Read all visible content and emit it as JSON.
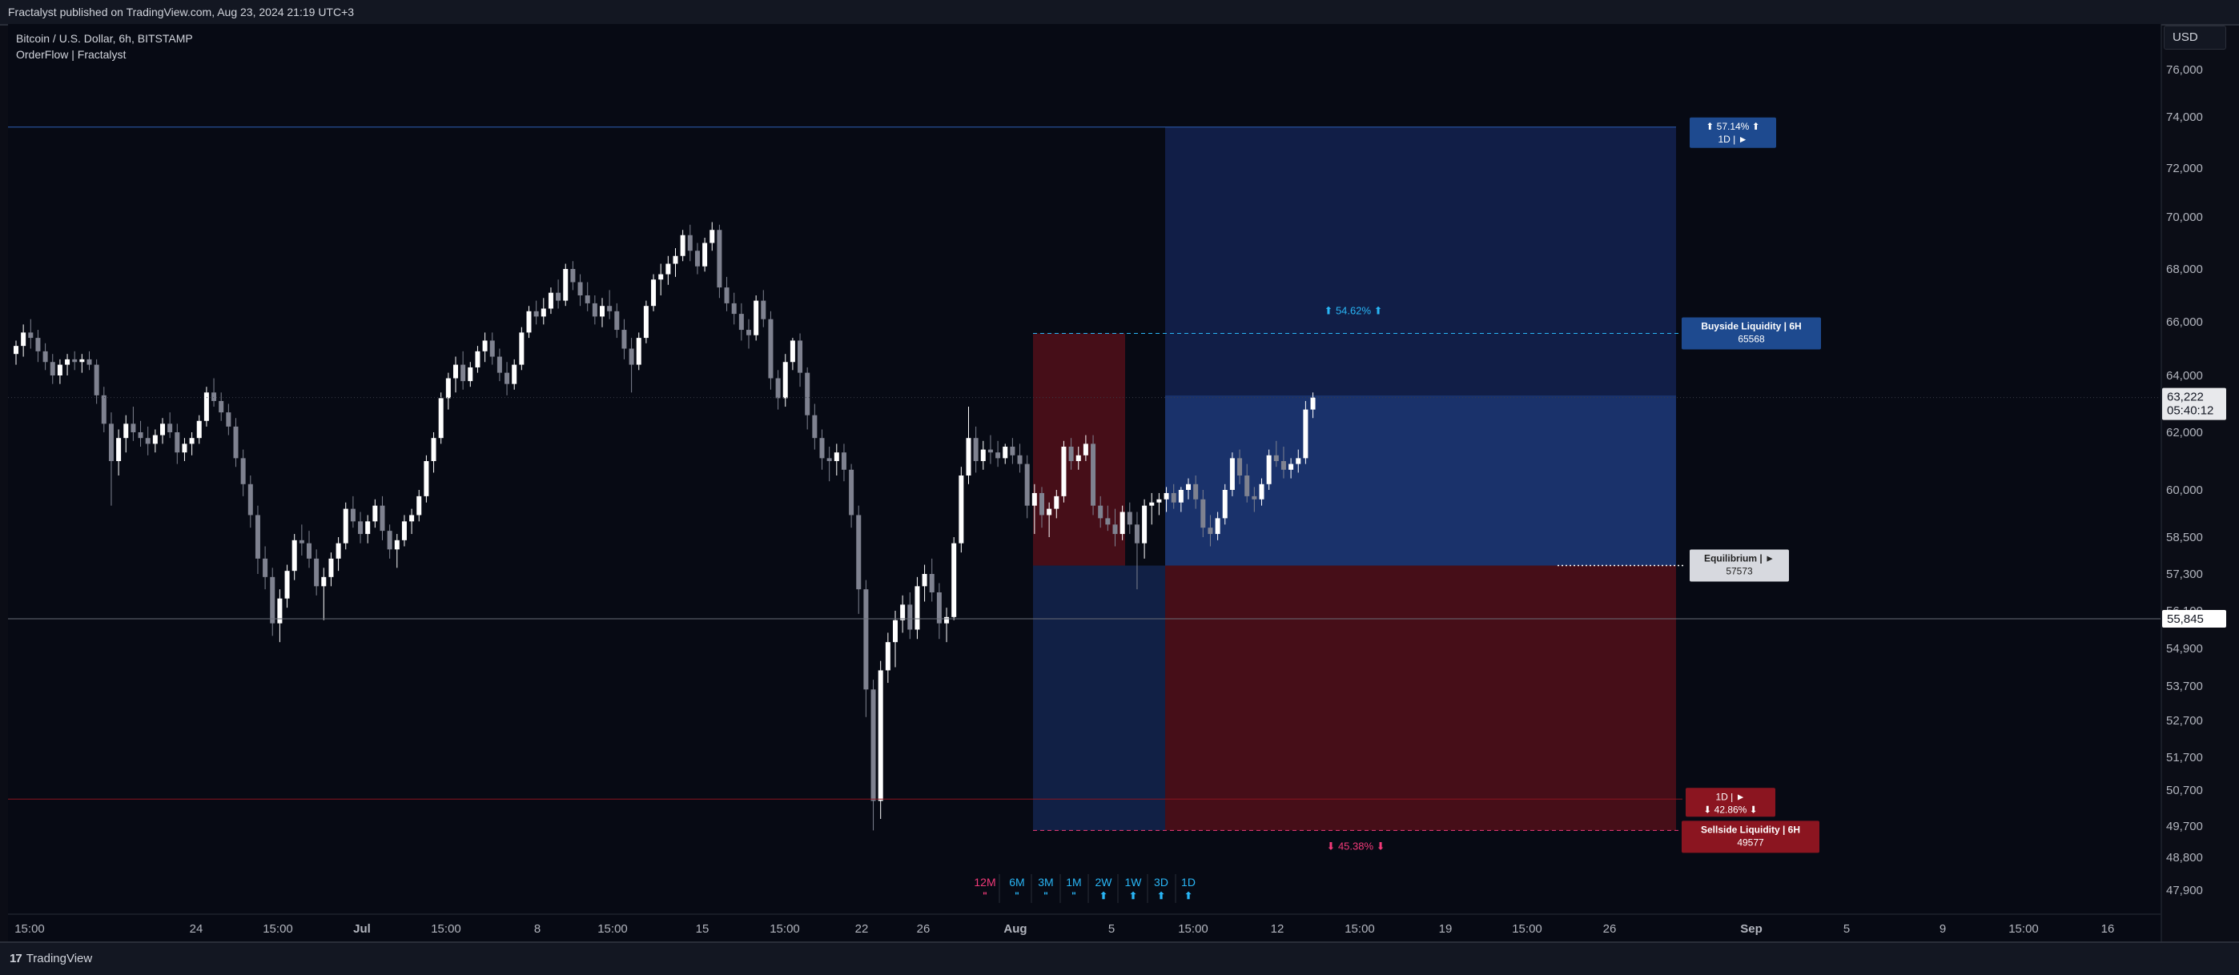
{
  "publish_bar": {
    "text": "Fractalyst published on TradingView.com, Aug 23, 2024 21:19 UTC+3"
  },
  "header": {
    "symbol": "Bitcoin / U.S. Dollar, 6h, BITSTAMP",
    "indicator": "OrderFlow | Fractalyst"
  },
  "currency_button": {
    "label": "USD"
  },
  "footer": {
    "brand": "TradingView",
    "logo_text": "17"
  },
  "colors": {
    "background": "#070a14",
    "up_candle": "#ffffff",
    "down_candle": "#7f8290",
    "premium_zone": "#1d3a7a",
    "discount_zone": "#4a0f18",
    "buyside": "#1e4a8f",
    "sellside": "#8b1520",
    "equilibrium": "#d1d4dc",
    "accent_cyan": "#29b6f6",
    "accent_pink": "#f23a79"
  },
  "chart_data": {
    "type": "candlestick",
    "symbol": "BTCUSD",
    "timeframe": "6h",
    "y_axis": {
      "ticks": [
        76000,
        74000,
        72000,
        70000,
        68000,
        66000,
        64000,
        62000,
        60000,
        58500,
        57300,
        56100,
        54900,
        53700,
        52700,
        51700,
        50700,
        49700,
        48800,
        47900
      ],
      "tick_labels": [
        "76,000",
        "74,000",
        "72,000",
        "70,000",
        "68,000",
        "66,000",
        "64,000",
        "62,000",
        "60,000",
        "58,500",
        "57,300",
        "56,100",
        "54,900",
        "53,700",
        "52,700",
        "51,700",
        "50,700",
        "49,700",
        "48,800",
        "47,900"
      ]
    },
    "x_axis": {
      "tick_labels": [
        "15:00",
        "24",
        "15:00",
        "Jul",
        "15:00",
        "8",
        "15:00",
        "15",
        "15:00",
        "22",
        "26",
        "Aug",
        "5",
        "15:00",
        "12",
        "15:00",
        "19",
        "15:00",
        "26",
        "Sep",
        "5",
        "9",
        "15:00",
        "16"
      ],
      "start": "2024-06-20",
      "end": "2024-09-18"
    },
    "price_labels": {
      "last": "63,222",
      "countdown": "05:40:12",
      "crosshair": "55,845"
    },
    "levels": {
      "buyside": {
        "label": "Buyside Liquidity | 6H",
        "value": 65568
      },
      "equilibrium": {
        "label": "Equilibrium | ►",
        "value": 57573
      },
      "sellside": {
        "label": "Sellside Liquidity | 6H",
        "value": 49577
      },
      "top_target": {
        "label": "⬆ 57.14% ⬆",
        "sub": "1D | ►",
        "value": 73600
      },
      "bottom_target": {
        "label": "⬇ 42.86% ⬇",
        "sub": "1D | ►",
        "value": 50450
      },
      "crosshair_value": 55845
    },
    "annotations": {
      "up_percent": "⬆ 54.62% ⬆",
      "down_percent": "⬇ 45.38% ⬇"
    },
    "timeframe_bias": [
      {
        "tf": "12M",
        "sign": "\"",
        "color": "#f23a79"
      },
      {
        "tf": "6M",
        "sign": "\"",
        "color": "#29b6f6"
      },
      {
        "tf": "3M",
        "sign": "\"",
        "color": "#29b6f6"
      },
      {
        "tf": "1M",
        "sign": "\"",
        "color": "#29b6f6"
      },
      {
        "tf": "2W",
        "sign": "⬆",
        "color": "#29b6f6"
      },
      {
        "tf": "1W",
        "sign": "⬆",
        "color": "#29b6f6"
      },
      {
        "tf": "3D",
        "sign": "⬆",
        "color": "#29b6f6"
      },
      {
        "tf": "1D",
        "sign": "⬆",
        "color": "#29b6f6"
      }
    ],
    "candles": [
      [
        64800,
        65300,
        64400,
        65100
      ],
      [
        65100,
        65900,
        64700,
        65600
      ],
      [
        65600,
        66100,
        65000,
        65400
      ],
      [
        65400,
        65700,
        64500,
        64900
      ],
      [
        64900,
        65200,
        64200,
        64500
      ],
      [
        64500,
        64800,
        63700,
        64000
      ],
      [
        64000,
        64600,
        63700,
        64400
      ],
      [
        64400,
        64800,
        64000,
        64600
      ],
      [
        64600,
        64900,
        64200,
        64500
      ],
      [
        64500,
        64800,
        64100,
        64600
      ],
      [
        64600,
        64900,
        64200,
        64400
      ],
      [
        64400,
        64600,
        63000,
        63300
      ],
      [
        63300,
        63600,
        62000,
        62300
      ],
      [
        62300,
        62700,
        59500,
        61000
      ],
      [
        61000,
        62100,
        60500,
        61800
      ],
      [
        61800,
        62600,
        61300,
        62300
      ],
      [
        62300,
        62900,
        61700,
        62000
      ],
      [
        62000,
        62400,
        61500,
        61800
      ],
      [
        61800,
        62200,
        61200,
        61600
      ],
      [
        61600,
        62100,
        61300,
        61900
      ],
      [
        61900,
        62500,
        61600,
        62300
      ],
      [
        62300,
        62700,
        61800,
        62000
      ],
      [
        62000,
        62300,
        60900,
        61300
      ],
      [
        61300,
        61800,
        61000,
        61600
      ],
      [
        61600,
        62000,
        61200,
        61800
      ],
      [
        61800,
        62600,
        61600,
        62400
      ],
      [
        62400,
        63600,
        62200,
        63400
      ],
      [
        63400,
        63900,
        62900,
        63100
      ],
      [
        63100,
        63400,
        62400,
        62700
      ],
      [
        62700,
        63000,
        61900,
        62200
      ],
      [
        62200,
        62500,
        60800,
        61100
      ],
      [
        61100,
        61400,
        59800,
        60200
      ],
      [
        60200,
        60500,
        58800,
        59200
      ],
      [
        59200,
        59500,
        57300,
        57800
      ],
      [
        57800,
        58200,
        56800,
        57200
      ],
      [
        57200,
        57500,
        55300,
        55700
      ],
      [
        55700,
        56800,
        55100,
        56500
      ],
      [
        56500,
        57600,
        56200,
        57400
      ],
      [
        57400,
        58600,
        57100,
        58400
      ],
      [
        58400,
        58900,
        57900,
        58300
      ],
      [
        58300,
        58700,
        57500,
        57800
      ],
      [
        57800,
        58100,
        56600,
        56900
      ],
      [
        56900,
        57500,
        55800,
        57200
      ],
      [
        57200,
        58000,
        56900,
        57800
      ],
      [
        57800,
        58500,
        57400,
        58300
      ],
      [
        58300,
        59600,
        58100,
        59400
      ],
      [
        59400,
        59800,
        58800,
        59000
      ],
      [
        59000,
        59300,
        58300,
        58600
      ],
      [
        58600,
        59200,
        58300,
        59000
      ],
      [
        59000,
        59700,
        58800,
        59500
      ],
      [
        59500,
        59800,
        58400,
        58700
      ],
      [
        58700,
        58900,
        57800,
        58100
      ],
      [
        58100,
        58600,
        57500,
        58400
      ],
      [
        58400,
        59200,
        58200,
        59000
      ],
      [
        59000,
        59400,
        58600,
        59200
      ],
      [
        59200,
        60000,
        59000,
        59800
      ],
      [
        59800,
        61200,
        59600,
        61000
      ],
      [
        61000,
        62000,
        60600,
        61800
      ],
      [
        61800,
        63400,
        61600,
        63200
      ],
      [
        63200,
        64100,
        62800,
        63900
      ],
      [
        63900,
        64700,
        63400,
        64400
      ],
      [
        64400,
        64900,
        63500,
        63800
      ],
      [
        63800,
        64500,
        63600,
        64300
      ],
      [
        64300,
        65100,
        64100,
        64900
      ],
      [
        64900,
        65600,
        64500,
        65300
      ],
      [
        65300,
        65600,
        64400,
        64700
      ],
      [
        64700,
        65000,
        63800,
        64100
      ],
      [
        64100,
        64500,
        63300,
        63700
      ],
      [
        63700,
        64600,
        63500,
        64400
      ],
      [
        64400,
        65800,
        64200,
        65600
      ],
      [
        65600,
        66600,
        65400,
        66400
      ],
      [
        66400,
        66800,
        65900,
        66200
      ],
      [
        66200,
        66900,
        65900,
        66500
      ],
      [
        66500,
        67300,
        66300,
        67100
      ],
      [
        67100,
        67600,
        66500,
        66800
      ],
      [
        66800,
        68200,
        66600,
        68000
      ],
      [
        68000,
        68300,
        67200,
        67500
      ],
      [
        67500,
        67800,
        66600,
        67000
      ],
      [
        67000,
        67500,
        66400,
        66700
      ],
      [
        66700,
        67000,
        65900,
        66200
      ],
      [
        66200,
        66900,
        65800,
        66600
      ],
      [
        66600,
        67200,
        66100,
        66400
      ],
      [
        66400,
        66700,
        65400,
        65700
      ],
      [
        65700,
        66100,
        64600,
        65000
      ],
      [
        65000,
        65400,
        63400,
        64400
      ],
      [
        64400,
        65600,
        64200,
        65400
      ],
      [
        65400,
        66800,
        65200,
        66600
      ],
      [
        66600,
        67800,
        66400,
        67600
      ],
      [
        67600,
        68200,
        67000,
        67800
      ],
      [
        67800,
        68500,
        67400,
        68200
      ],
      [
        68200,
        68800,
        67700,
        68500
      ],
      [
        68500,
        69500,
        68300,
        69300
      ],
      [
        69300,
        69700,
        68300,
        68700
      ],
      [
        68700,
        69000,
        67800,
        68100
      ],
      [
        68100,
        69200,
        67900,
        69000
      ],
      [
        69000,
        69800,
        68700,
        69500
      ],
      [
        69500,
        69700,
        66900,
        67300
      ],
      [
        67300,
        67700,
        66400,
        66700
      ],
      [
        66700,
        67100,
        65900,
        66300
      ],
      [
        66300,
        66700,
        65300,
        65700
      ],
      [
        65700,
        66100,
        65000,
        65500
      ],
      [
        65500,
        67000,
        65300,
        66800
      ],
      [
        66800,
        67200,
        65800,
        66100
      ],
      [
        66100,
        66400,
        63500,
        63900
      ],
      [
        63900,
        64200,
        62800,
        63200
      ],
      [
        63200,
        64800,
        62900,
        64500
      ],
      [
        64500,
        65400,
        64200,
        65300
      ],
      [
        65300,
        65568,
        63600,
        64100
      ],
      [
        64100,
        64300,
        62100,
        62600
      ],
      [
        62600,
        63000,
        61400,
        61800
      ],
      [
        61800,
        62100,
        60700,
        61100
      ],
      [
        61100,
        61500,
        60300,
        61000
      ],
      [
        61000,
        61600,
        60500,
        61300
      ],
      [
        61300,
        61600,
        60300,
        60700
      ],
      [
        60700,
        60900,
        58800,
        59200
      ],
      [
        59200,
        59500,
        56000,
        56800
      ],
      [
        56800,
        57100,
        52800,
        53600
      ],
      [
        53600,
        53900,
        49577,
        50400
      ],
      [
        50400,
        54500,
        49900,
        54200
      ],
      [
        54200,
        55400,
        53800,
        55100
      ],
      [
        55100,
        56100,
        54300,
        55800
      ],
      [
        55800,
        56600,
        55400,
        56300
      ],
      [
        56300,
        56700,
        55200,
        55500
      ],
      [
        55500,
        57200,
        55200,
        56900
      ],
      [
        56900,
        57600,
        56400,
        57300
      ],
      [
        57300,
        57800,
        56400,
        56700
      ],
      [
        56700,
        57000,
        55200,
        55700
      ],
      [
        55700,
        56200,
        55100,
        55900
      ],
      [
        55900,
        58500,
        55800,
        58300
      ],
      [
        58300,
        60800,
        58000,
        60500
      ],
      [
        60500,
        62900,
        60200,
        61800
      ],
      [
        61800,
        62200,
        60600,
        61000
      ],
      [
        61000,
        61700,
        60700,
        61400
      ],
      [
        61400,
        61900,
        60900,
        61300
      ],
      [
        61300,
        61700,
        60800,
        61100
      ],
      [
        61100,
        61600,
        60900,
        61500
      ],
      [
        61500,
        61800,
        60900,
        61200
      ],
      [
        61200,
        61600,
        60600,
        60900
      ],
      [
        60900,
        61200,
        59100,
        59500
      ],
      [
        59500,
        60200,
        58600,
        59900
      ],
      [
        59900,
        60100,
        58800,
        59200
      ],
      [
        59200,
        59600,
        58500,
        59400
      ],
      [
        59400,
        60000,
        59100,
        59800
      ],
      [
        59800,
        61700,
        59600,
        61500
      ],
      [
        61500,
        61800,
        60700,
        61000
      ],
      [
        61000,
        61500,
        60700,
        61200
      ],
      [
        61200,
        61900,
        61000,
        61600
      ],
      [
        61600,
        61900,
        59200,
        59500
      ],
      [
        59500,
        59800,
        58800,
        59100
      ],
      [
        59100,
        59500,
        58700,
        58900
      ],
      [
        58900,
        59400,
        58200,
        58600
      ],
      [
        58600,
        59500,
        58400,
        59300
      ],
      [
        59300,
        59600,
        58600,
        58900
      ],
      [
        58900,
        59300,
        56800,
        58300
      ],
      [
        58300,
        59700,
        57800,
        59500
      ],
      [
        59500,
        59900,
        58900,
        59600
      ],
      [
        59600,
        59900,
        59200,
        59700
      ],
      [
        59700,
        60100,
        59300,
        59900
      ],
      [
        59900,
        60200,
        59400,
        59600
      ],
      [
        59600,
        60100,
        59300,
        60000
      ],
      [
        60000,
        60400,
        59700,
        60200
      ],
      [
        60200,
        60500,
        59400,
        59700
      ],
      [
        59700,
        60000,
        58500,
        58800
      ],
      [
        58800,
        59200,
        58200,
        58600
      ],
      [
        58600,
        59300,
        58400,
        59100
      ],
      [
        59100,
        60200,
        58900,
        60000
      ],
      [
        60000,
        61300,
        59800,
        61100
      ],
      [
        61100,
        61400,
        60200,
        60500
      ],
      [
        60500,
        60900,
        59600,
        59800
      ],
      [
        59800,
        60100,
        59300,
        59700
      ],
      [
        59700,
        60400,
        59500,
        60200
      ],
      [
        60200,
        61400,
        60000,
        61200
      ],
      [
        61200,
        61700,
        60800,
        61000
      ],
      [
        61000,
        61500,
        60400,
        60700
      ],
      [
        60700,
        61100,
        60400,
        60900
      ],
      [
        60900,
        61400,
        60600,
        61100
      ],
      [
        61100,
        63100,
        60900,
        62800
      ],
      [
        62800,
        63400,
        62500,
        63222
      ]
    ]
  }
}
